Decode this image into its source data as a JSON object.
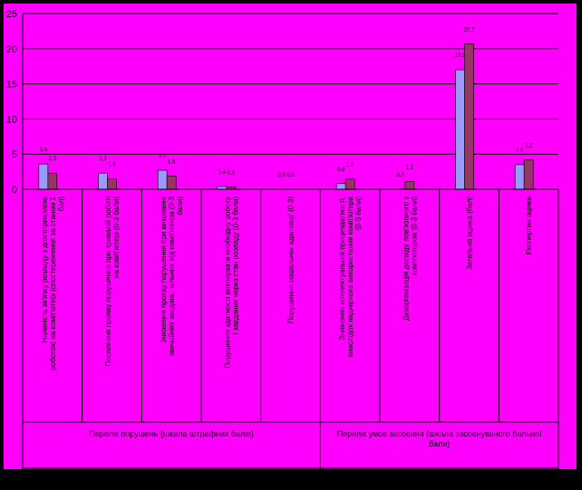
{
  "colors": {
    "background": "#000000",
    "plot_area": "#ff00ff",
    "series_1": "#9999ff",
    "series_2": "#993366",
    "gridline": "#000000"
  },
  "chart_data": {
    "type": "bar",
    "title": "",
    "xlabel": "",
    "ylabel": "",
    "ylim": [
      0,
      25
    ],
    "y_ticks": [
      "0",
      "5",
      "10",
      "15",
      "20",
      "25"
    ],
    "grid": true,
    "legend": "none",
    "categories": [
      "Наявність зв'язку розладу з довготривалою роботою на комп'ютері (спостереження за станом 1 бал)",
      "Посилення прояву порушення при тривалій роботі на комп'ютері (0-3 бали)",
      "Зниження прояву порушення при виконанні звичайних завдань, вільних від комп'ютера (0-3 бали)",
      "Порушення здатності виконувати необхідну роботу і завдання через стан розладу (0-3 бали)",
      "Порушення соціальної адаптації (0-3)",
      "Зниження інтелектуальної працездатності, внаслідок надмірного використання комп'ютера (0-3 бали)",
      "Дезорганізація досвіду, пов'язаного з комп'ютером (0-3 бали)",
      "Загальна оцінка (бал)",
      "Експертна оцінка"
    ],
    "series": [
      {
        "values": [
          3.6,
          2.3,
          2.7,
          0.4,
          0.0,
          0.8,
          0.0,
          17.0,
          3.5
        ]
      },
      {
        "values": [
          2.3,
          1.5,
          1.9,
          0.3,
          0.0,
          1.5,
          1.1,
          20.7,
          4.2
        ]
      }
    ],
    "groups": [
      {
        "label": "Перелік порушень (шкала штрафних балів)",
        "span": [
          0,
          4
        ]
      },
      {
        "label": "Перелік умов засоєння (шкала засоєнуваного бальної бали)",
        "span": [
          5,
          8
        ]
      }
    ]
  }
}
